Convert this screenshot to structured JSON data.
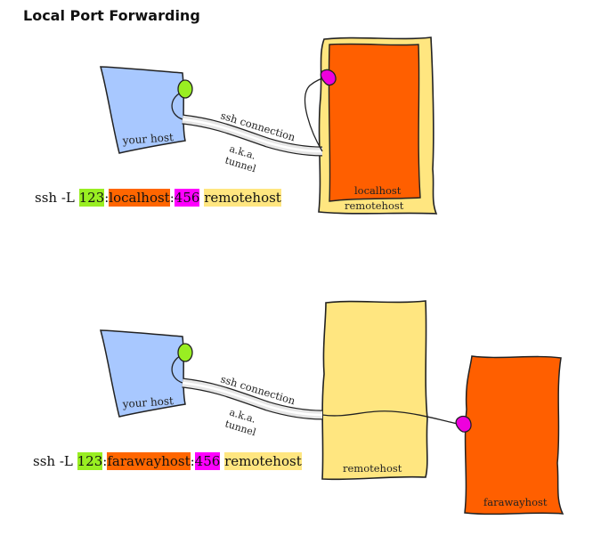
{
  "title": "Local Port Forwarding",
  "colors": {
    "your_host": "#a8c8ff",
    "remotehost": "#ffe680",
    "localhost": "#ff5f00",
    "farawayhost": "#ff5f00",
    "port_green": "#99ee22",
    "port_magenta": "#ee00dd"
  },
  "diagram1": {
    "your_host": "your host",
    "ssh_connection": "ssh connection",
    "tunnel_line1": "a.k.a.",
    "tunnel_line2": "tunnel",
    "localhost": "localhost",
    "remotehost": "remotehost",
    "command": {
      "prefix": "ssh -L ",
      "local_port": "123",
      "sep1": ":",
      "dest_host": "localhost",
      "sep2": ":",
      "dest_port": "456",
      "space": " ",
      "ssh_host": "remotehost"
    }
  },
  "diagram2": {
    "your_host": "your host",
    "ssh_connection": "ssh connection",
    "tunnel_line1": "a.k.a.",
    "tunnel_line2": "tunnel",
    "remotehost": "remotehost",
    "farawayhost": "farawayhost",
    "command": {
      "prefix": "ssh -L ",
      "local_port": "123",
      "sep1": ":",
      "dest_host": "farawayhost",
      "sep2": ":",
      "dest_port": "456",
      "space": " ",
      "ssh_host": "remotehost"
    }
  }
}
